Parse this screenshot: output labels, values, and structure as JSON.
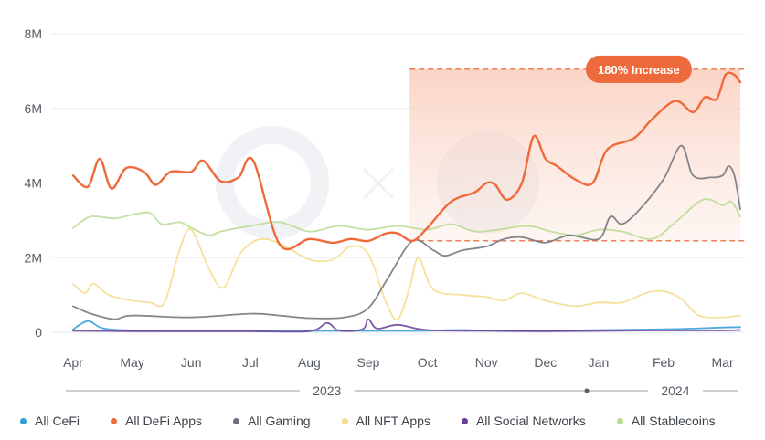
{
  "chart_data": {
    "type": "line",
    "title": "",
    "xlabel": "",
    "ylabel": "",
    "ylim": [
      0,
      8000000
    ],
    "yticks": [
      {
        "value": 0,
        "label": "0"
      },
      {
        "value": 2000000,
        "label": "2M"
      },
      {
        "value": 4000000,
        "label": "4M"
      },
      {
        "value": 6000000,
        "label": "6M"
      },
      {
        "value": 8000000,
        "label": "8M"
      }
    ],
    "xlim": [
      0,
      11.3
    ],
    "xticks": [
      {
        "value": 0,
        "label": "Apr"
      },
      {
        "value": 1,
        "label": "May"
      },
      {
        "value": 2,
        "label": "Jun"
      },
      {
        "value": 3,
        "label": "Jul"
      },
      {
        "value": 4,
        "label": "Aug"
      },
      {
        "value": 5,
        "label": "Sep"
      },
      {
        "value": 6,
        "label": "Oct"
      },
      {
        "value": 7,
        "label": "Nov"
      },
      {
        "value": 8,
        "label": "Dec"
      },
      {
        "value": 8.9,
        "label": "Jan"
      },
      {
        "value": 10,
        "label": "Feb"
      },
      {
        "value": 11,
        "label": "Mar"
      }
    ],
    "years": [
      {
        "label": "2023",
        "value": 4.3
      },
      {
        "label": "2024",
        "value": 10.2
      }
    ],
    "year_marker_value": 8.7,
    "grid": true,
    "legend_position": "bottom",
    "annotation": {
      "text": "180% Increase",
      "x_start": 5.7,
      "x_end": 11.3,
      "y_low": 2450000,
      "y_high": 7050000
    },
    "series": [
      {
        "name": "All CeFi",
        "color": "#2e9bd6",
        "points": [
          [
            0,
            80000
          ],
          [
            0.25,
            300000
          ],
          [
            0.5,
            110000
          ],
          [
            1,
            50000
          ],
          [
            2,
            40000
          ],
          [
            3,
            40000
          ],
          [
            4,
            40000
          ],
          [
            5,
            40000
          ],
          [
            5.9,
            40000
          ],
          [
            6.5,
            60000
          ],
          [
            7,
            50000
          ],
          [
            8,
            40000
          ],
          [
            9,
            60000
          ],
          [
            10,
            80000
          ],
          [
            10.5,
            100000
          ],
          [
            11,
            130000
          ],
          [
            11.3,
            140000
          ]
        ]
      },
      {
        "name": "All DeFi Apps",
        "color": "#ef6a3a",
        "points": [
          [
            0,
            4200000
          ],
          [
            0.25,
            3900000
          ],
          [
            0.45,
            4650000
          ],
          [
            0.65,
            3850000
          ],
          [
            0.9,
            4400000
          ],
          [
            1.2,
            4300000
          ],
          [
            1.4,
            3950000
          ],
          [
            1.65,
            4300000
          ],
          [
            2,
            4300000
          ],
          [
            2.2,
            4600000
          ],
          [
            2.5,
            4050000
          ],
          [
            2.8,
            4150000
          ],
          [
            3.05,
            4600000
          ],
          [
            3.5,
            2350000
          ],
          [
            4,
            2500000
          ],
          [
            4.4,
            2400000
          ],
          [
            4.7,
            2500000
          ],
          [
            5,
            2450000
          ],
          [
            5.3,
            2650000
          ],
          [
            5.5,
            2650000
          ],
          [
            5.75,
            2450000
          ],
          [
            6,
            2800000
          ],
          [
            6.4,
            3500000
          ],
          [
            6.8,
            3750000
          ],
          [
            7,
            4000000
          ],
          [
            7.15,
            3950000
          ],
          [
            7.35,
            3550000
          ],
          [
            7.6,
            4000000
          ],
          [
            7.8,
            5250000
          ],
          [
            8,
            4650000
          ],
          [
            8.2,
            4450000
          ],
          [
            8.5,
            4100000
          ],
          [
            8.8,
            4000000
          ],
          [
            9.05,
            4900000
          ],
          [
            9.5,
            5200000
          ],
          [
            9.8,
            5700000
          ],
          [
            10.2,
            6200000
          ],
          [
            10.5,
            5900000
          ],
          [
            10.7,
            6300000
          ],
          [
            10.9,
            6250000
          ],
          [
            11.05,
            6900000
          ],
          [
            11.2,
            6900000
          ],
          [
            11.3,
            6700000
          ]
        ]
      },
      {
        "name": "All Gaming",
        "color": "#6c727a",
        "points": [
          [
            0,
            700000
          ],
          [
            0.3,
            500000
          ],
          [
            0.7,
            350000
          ],
          [
            1,
            450000
          ],
          [
            2,
            400000
          ],
          [
            3,
            500000
          ],
          [
            3.5,
            450000
          ],
          [
            4,
            380000
          ],
          [
            4.6,
            400000
          ],
          [
            5,
            650000
          ],
          [
            5.35,
            1500000
          ],
          [
            5.75,
            2450000
          ],
          [
            6.1,
            2200000
          ],
          [
            6.3,
            2050000
          ],
          [
            6.6,
            2200000
          ],
          [
            7,
            2300000
          ],
          [
            7.3,
            2500000
          ],
          [
            7.6,
            2550000
          ],
          [
            8,
            2400000
          ],
          [
            8.4,
            2600000
          ],
          [
            8.9,
            2500000
          ],
          [
            9.1,
            3100000
          ],
          [
            9.3,
            2900000
          ],
          [
            9.6,
            3300000
          ],
          [
            10,
            4100000
          ],
          [
            10.3,
            5000000
          ],
          [
            10.5,
            4200000
          ],
          [
            10.8,
            4150000
          ],
          [
            11,
            4200000
          ],
          [
            11.1,
            4450000
          ],
          [
            11.2,
            4200000
          ],
          [
            11.3,
            3300000
          ]
        ]
      },
      {
        "name": "All NFT Apps",
        "color": "#f4dc8a",
        "points": [
          [
            0,
            1300000
          ],
          [
            0.2,
            1050000
          ],
          [
            0.35,
            1300000
          ],
          [
            0.6,
            1000000
          ],
          [
            1,
            850000
          ],
          [
            1.3,
            800000
          ],
          [
            1.55,
            800000
          ],
          [
            1.8,
            2200000
          ],
          [
            2,
            2750000
          ],
          [
            2.3,
            1700000
          ],
          [
            2.55,
            1200000
          ],
          [
            2.85,
            2150000
          ],
          [
            3.2,
            2500000
          ],
          [
            3.6,
            2300000
          ],
          [
            4,
            1950000
          ],
          [
            4.4,
            1950000
          ],
          [
            4.7,
            2300000
          ],
          [
            5,
            2100000
          ],
          [
            5.3,
            800000
          ],
          [
            5.5,
            350000
          ],
          [
            5.7,
            1200000
          ],
          [
            5.85,
            2000000
          ],
          [
            6.1,
            1150000
          ],
          [
            6.6,
            1000000
          ],
          [
            7,
            950000
          ],
          [
            7.3,
            850000
          ],
          [
            7.6,
            1050000
          ],
          [
            8,
            850000
          ],
          [
            8.5,
            700000
          ],
          [
            8.9,
            800000
          ],
          [
            9.3,
            800000
          ],
          [
            9.7,
            1050000
          ],
          [
            10,
            1100000
          ],
          [
            10.3,
            900000
          ],
          [
            10.6,
            450000
          ],
          [
            11,
            400000
          ],
          [
            11.3,
            450000
          ]
        ]
      },
      {
        "name": "All Social Networks",
        "color": "#6a3d9a",
        "points": [
          [
            0,
            40000
          ],
          [
            1,
            30000
          ],
          [
            2,
            30000
          ],
          [
            3,
            30000
          ],
          [
            4,
            30000
          ],
          [
            4.3,
            250000
          ],
          [
            4.5,
            50000
          ],
          [
            4.9,
            80000
          ],
          [
            5,
            350000
          ],
          [
            5.15,
            100000
          ],
          [
            5.5,
            200000
          ],
          [
            6,
            60000
          ],
          [
            7,
            40000
          ],
          [
            8,
            30000
          ],
          [
            9,
            40000
          ],
          [
            10,
            50000
          ],
          [
            11,
            50000
          ],
          [
            11.3,
            60000
          ]
        ]
      },
      {
        "name": "All Stablecoins",
        "color": "#b7db8e",
        "points": [
          [
            0,
            2800000
          ],
          [
            0.3,
            3100000
          ],
          [
            0.7,
            3050000
          ],
          [
            1,
            3150000
          ],
          [
            1.3,
            3200000
          ],
          [
            1.5,
            2900000
          ],
          [
            1.8,
            2950000
          ],
          [
            2,
            2800000
          ],
          [
            2.3,
            2600000
          ],
          [
            2.5,
            2700000
          ],
          [
            3,
            2850000
          ],
          [
            3.5,
            2950000
          ],
          [
            4,
            2700000
          ],
          [
            4.5,
            2850000
          ],
          [
            5,
            2750000
          ],
          [
            5.5,
            2850000
          ],
          [
            6,
            2750000
          ],
          [
            6.4,
            2900000
          ],
          [
            6.8,
            2700000
          ],
          [
            7.2,
            2750000
          ],
          [
            7.7,
            2850000
          ],
          [
            8.1,
            2700000
          ],
          [
            8.5,
            2600000
          ],
          [
            8.9,
            2750000
          ],
          [
            9.3,
            2700000
          ],
          [
            9.8,
            2500000
          ],
          [
            10.2,
            2950000
          ],
          [
            10.6,
            3500000
          ],
          [
            10.8,
            3550000
          ],
          [
            11,
            3400000
          ],
          [
            11.15,
            3500000
          ],
          [
            11.3,
            3100000
          ]
        ]
      }
    ]
  },
  "legend": [
    {
      "label": "All CeFi",
      "color": "#2e9bd6"
    },
    {
      "label": "All DeFi Apps",
      "color": "#ef6a3a"
    },
    {
      "label": "All Gaming",
      "color": "#6c727a"
    },
    {
      "label": "All NFT Apps",
      "color": "#f4dc8a"
    },
    {
      "label": "All Social Networks",
      "color": "#6a3d9a"
    },
    {
      "label": "All Stablecoins",
      "color": "#b7db8e"
    }
  ]
}
